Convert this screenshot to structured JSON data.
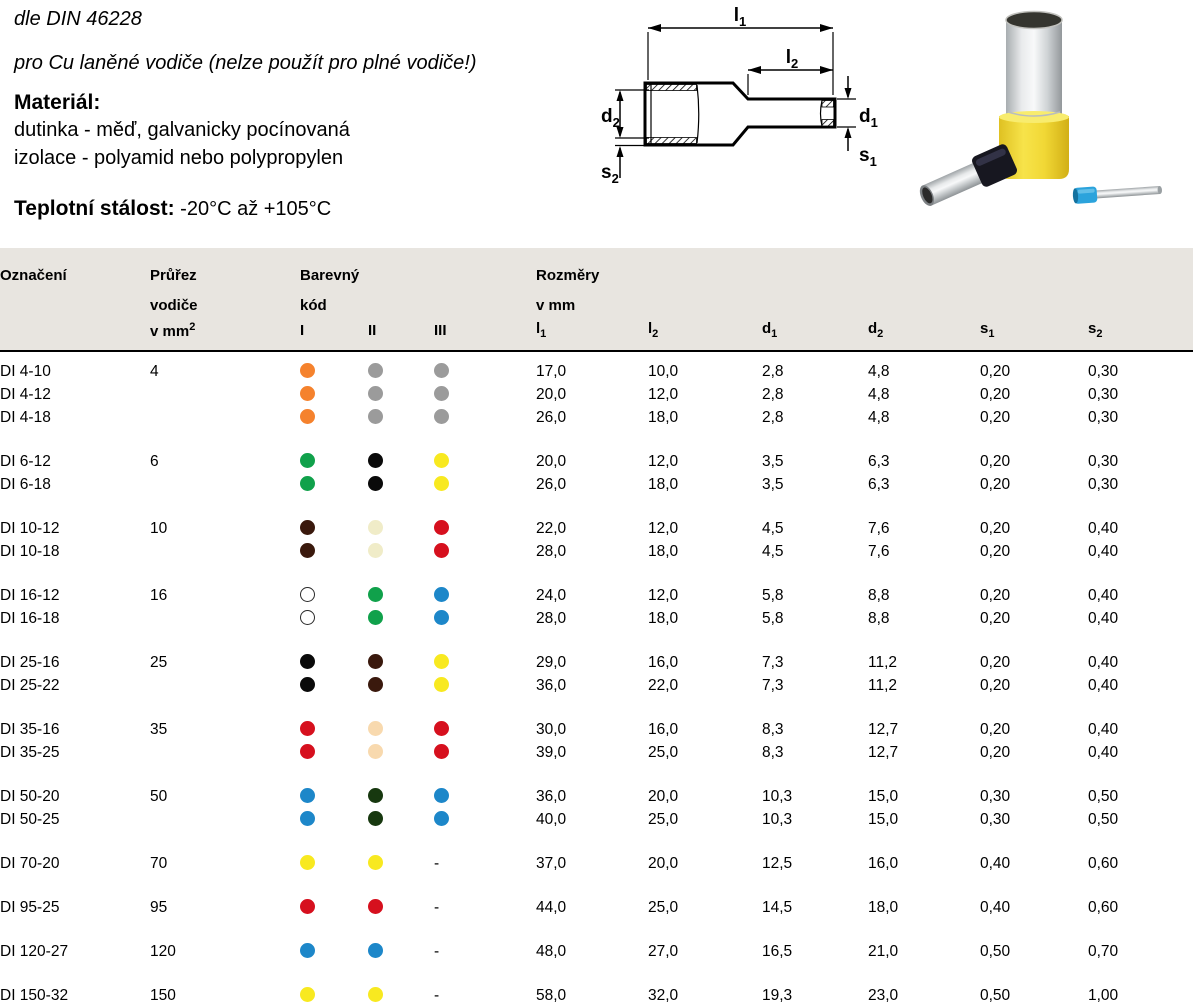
{
  "intro": {
    "din_line": "dle DIN 46228",
    "usage_line": "pro Cu laněné vodiče (nelze použít pro plné vodiče!)",
    "material_label": "Materiál:",
    "material_line1": "dutinka - měď, galvanicky pocínovaná",
    "material_line2": "izolace - polyamid nebo polypropylen",
    "temp_label": "Teplotní stálost:",
    "temp_value": " -20°C až +105°C"
  },
  "diagram": {
    "l1": {
      "base": "l",
      "sub": "1"
    },
    "l2": {
      "base": "l",
      "sub": "2"
    },
    "d1": {
      "base": "d",
      "sub": "1"
    },
    "d2": {
      "base": "d",
      "sub": "2"
    },
    "s1": {
      "base": "s",
      "sub": "1"
    },
    "s2": {
      "base": "s",
      "sub": "2"
    }
  },
  "photo": {
    "large_sleeve_color": "#eed639",
    "medium_sleeve_color": "#171720",
    "small_sleeve_color": "#2ba3dc",
    "metal_color": "#c9cccd"
  },
  "table": {
    "header": {
      "col_designation": "Označení",
      "col_cross_line1": "Průřez",
      "col_cross_line2": "vodiče",
      "col_cross_line3": "v mm",
      "col_cross_sup": "2",
      "col_color_line1": "Barevný",
      "col_color_line2": "kód",
      "col_color_i": "I",
      "col_color_ii": "II",
      "col_color_iii": "III",
      "col_dims_line1": "Rozměry",
      "col_dims_line2": "v mm",
      "dims": [
        {
          "base": "l",
          "sub": "1"
        },
        {
          "base": "l",
          "sub": "2"
        },
        {
          "base": "d",
          "sub": "1"
        },
        {
          "base": "d",
          "sub": "2"
        },
        {
          "base": "s",
          "sub": "1"
        },
        {
          "base": "s",
          "sub": "2"
        }
      ]
    },
    "color_legend": {
      "orange": "#F5822D",
      "gray": "#9B9B9B",
      "green": "#10A14B",
      "black": "#0A0A0A",
      "yellow": "#F8E920",
      "brown": "#3A190D",
      "ivory": "#F0ECC8",
      "red": "#D6101E",
      "white": "#FFFFFF",
      "blue": "#1D87C9",
      "dark_green": "#17380F",
      "beige": "#F8D9AE"
    },
    "groups": [
      {
        "cross_section": "4",
        "rows": [
          {
            "name": "DI 4-10",
            "colors": [
              "#F5822D",
              "#9B9B9B",
              "#9B9B9B"
            ],
            "dims": [
              "17,0",
              "10,0",
              "2,8",
              "4,8",
              "0,20",
              "0,30"
            ]
          },
          {
            "name": "DI 4-12",
            "colors": [
              "#F5822D",
              "#9B9B9B",
              "#9B9B9B"
            ],
            "dims": [
              "20,0",
              "12,0",
              "2,8",
              "4,8",
              "0,20",
              "0,30"
            ]
          },
          {
            "name": "DI 4-18",
            "colors": [
              "#F5822D",
              "#9B9B9B",
              "#9B9B9B"
            ],
            "dims": [
              "26,0",
              "18,0",
              "2,8",
              "4,8",
              "0,20",
              "0,30"
            ]
          }
        ]
      },
      {
        "cross_section": "6",
        "rows": [
          {
            "name": "DI 6-12",
            "colors": [
              "#10A14B",
              "#0A0A0A",
              "#F8E920"
            ],
            "dims": [
              "20,0",
              "12,0",
              "3,5",
              "6,3",
              "0,20",
              "0,30"
            ]
          },
          {
            "name": "DI 6-18",
            "colors": [
              "#10A14B",
              "#0A0A0A",
              "#F8E920"
            ],
            "dims": [
              "26,0",
              "18,0",
              "3,5",
              "6,3",
              "0,20",
              "0,30"
            ]
          }
        ]
      },
      {
        "cross_section": "10",
        "rows": [
          {
            "name": "DI 10-12",
            "colors": [
              "#3A190D",
              "#F0ECC8",
              "#D6101E"
            ],
            "dims": [
              "22,0",
              "12,0",
              "4,5",
              "7,6",
              "0,20",
              "0,40"
            ]
          },
          {
            "name": "DI 10-18",
            "colors": [
              "#3A190D",
              "#F0ECC8",
              "#D6101E"
            ],
            "dims": [
              "28,0",
              "18,0",
              "4,5",
              "7,6",
              "0,20",
              "0,40"
            ]
          }
        ]
      },
      {
        "cross_section": "16",
        "rows": [
          {
            "name": "DI 16-12",
            "colors": [
              "#FFFFFF",
              "#10A14B",
              "#1D87C9"
            ],
            "dims": [
              "24,0",
              "12,0",
              "5,8",
              "8,8",
              "0,20",
              "0,40"
            ]
          },
          {
            "name": "DI 16-18",
            "colors": [
              "#FFFFFF",
              "#10A14B",
              "#1D87C9"
            ],
            "dims": [
              "28,0",
              "18,0",
              "5,8",
              "8,8",
              "0,20",
              "0,40"
            ]
          }
        ]
      },
      {
        "cross_section": "25",
        "rows": [
          {
            "name": "DI 25-16",
            "colors": [
              "#0A0A0A",
              "#3A190D",
              "#F8E920"
            ],
            "dims": [
              "29,0",
              "16,0",
              "7,3",
              "11,2",
              "0,20",
              "0,40"
            ]
          },
          {
            "name": "DI 25-22",
            "colors": [
              "#0A0A0A",
              "#3A190D",
              "#F8E920"
            ],
            "dims": [
              "36,0",
              "22,0",
              "7,3",
              "11,2",
              "0,20",
              "0,40"
            ]
          }
        ]
      },
      {
        "cross_section": "35",
        "rows": [
          {
            "name": "DI 35-16",
            "colors": [
              "#D6101E",
              "#F8D9AE",
              "#D6101E"
            ],
            "dims": [
              "30,0",
              "16,0",
              "8,3",
              "12,7",
              "0,20",
              "0,40"
            ]
          },
          {
            "name": "DI 35-25",
            "colors": [
              "#D6101E",
              "#F8D9AE",
              "#D6101E"
            ],
            "dims": [
              "39,0",
              "25,0",
              "8,3",
              "12,7",
              "0,20",
              "0,40"
            ]
          }
        ]
      },
      {
        "cross_section": "50",
        "rows": [
          {
            "name": "DI 50-20",
            "colors": [
              "#1D87C9",
              "#17380F",
              "#1D87C9"
            ],
            "dims": [
              "36,0",
              "20,0",
              "10,3",
              "15,0",
              "0,30",
              "0,50"
            ]
          },
          {
            "name": "DI 50-25",
            "colors": [
              "#1D87C9",
              "#17380F",
              "#1D87C9"
            ],
            "dims": [
              "40,0",
              "25,0",
              "10,3",
              "15,0",
              "0,30",
              "0,50"
            ]
          }
        ]
      },
      {
        "cross_section": "70",
        "rows": [
          {
            "name": "DI 70-20",
            "colors": [
              "#F8E920",
              "#F8E920",
              "-"
            ],
            "dims": [
              "37,0",
              "20,0",
              "12,5",
              "16,0",
              "0,40",
              "0,60"
            ]
          }
        ]
      },
      {
        "cross_section": "95",
        "rows": [
          {
            "name": "DI 95-25",
            "colors": [
              "#D6101E",
              "#D6101E",
              "-"
            ],
            "dims": [
              "44,0",
              "25,0",
              "14,5",
              "18,0",
              "0,40",
              "0,60"
            ]
          }
        ]
      },
      {
        "cross_section": "120",
        "rows": [
          {
            "name": "DI 120-27",
            "colors": [
              "#1D87C9",
              "#1D87C9",
              "-"
            ],
            "dims": [
              "48,0",
              "27,0",
              "16,5",
              "21,0",
              "0,50",
              "0,70"
            ]
          }
        ]
      },
      {
        "cross_section": "150",
        "rows": [
          {
            "name": "DI 150-32",
            "colors": [
              "#F8E920",
              "#F8E920",
              "-"
            ],
            "dims": [
              "58,0",
              "32,0",
              "19,3",
              "23,0",
              "0,50",
              "1,00"
            ]
          }
        ]
      }
    ]
  }
}
